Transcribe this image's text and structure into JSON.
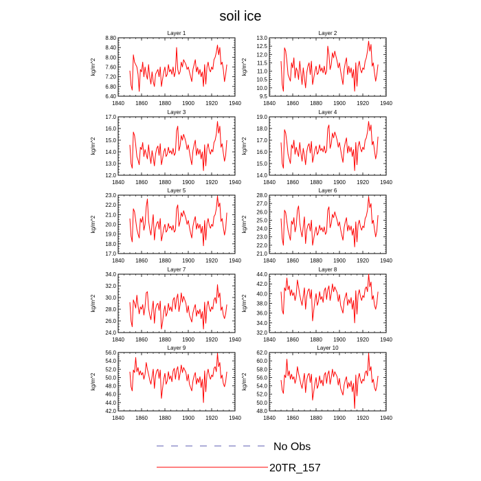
{
  "title": "soil ice",
  "legend": [
    {
      "label": "No Obs",
      "color": "#5b5bb0",
      "style": "dashed"
    },
    {
      "label": "20TR_157",
      "color": "#ff0000",
      "style": "solid"
    }
  ],
  "chart_data": [
    {
      "type": "line",
      "title": "Layer 1",
      "ylabel": "kg/m^2",
      "xlim": [
        1840,
        1940
      ],
      "ylim": [
        6.4,
        8.8
      ],
      "xticks": [
        "1840",
        "1860",
        "1880",
        "1900",
        "1920",
        "1940"
      ],
      "yticks": [
        "6.40",
        "6.80",
        "7.20",
        "7.60",
        "8.00",
        "8.40",
        "8.80"
      ],
      "start_year": 1850,
      "color": "#ff0000",
      "values": [
        7.45,
        6.85,
        6.65,
        8.1,
        7.8,
        7.7,
        7.6,
        7.3,
        6.6,
        7.5,
        7.4,
        7.8,
        7.2,
        7.6,
        7.3,
        7.1,
        7.7,
        7.2,
        6.9,
        7.4,
        7.0,
        6.8,
        7.3,
        7.4,
        7.5,
        7.2,
        7.6,
        6.8,
        7.1,
        7.4,
        7.6,
        7.2,
        7.3,
        7.7,
        7.4,
        7.5,
        7.3,
        7.6,
        7.2,
        7.4,
        8.4,
        7.5,
        7.3,
        7.4,
        7.8,
        7.6,
        7.9,
        7.8,
        7.7,
        7.5,
        7.6,
        7.4,
        7.2,
        7.0,
        7.5,
        7.7,
        7.9,
        7.4,
        7.6,
        7.3,
        7.5,
        7.2,
        7.4,
        6.8,
        7.7,
        6.9,
        7.6,
        7.8,
        7.5,
        7.4,
        7.6,
        7.5,
        7.9,
        8.0,
        8.2,
        8.5,
        8.1,
        8.4,
        7.7,
        7.8,
        7.5,
        7.0,
        7.3,
        7.7
      ]
    },
    {
      "type": "line",
      "title": "Layer 2",
      "ylabel": "kg/m^2",
      "xlim": [
        1840,
        1940
      ],
      "ylim": [
        9.5,
        13.0
      ],
      "xticks": [
        "1840",
        "1860",
        "1880",
        "1900",
        "1920",
        "1940"
      ],
      "yticks": [
        "9.5",
        "10.0",
        "10.5",
        "11.0",
        "11.5",
        "12.0",
        "12.5",
        "13.0"
      ],
      "start_year": 1850,
      "color": "#ff0000",
      "values": [
        11.6,
        10.2,
        9.8,
        12.4,
        12.2,
        11.6,
        10.8,
        10.6,
        10.4,
        11.5,
        11.2,
        11.8,
        10.6,
        11.2,
        11.0,
        10.5,
        11.6,
        10.9,
        10.2,
        11.2,
        10.6,
        10.0,
        10.9,
        11.3,
        11.5,
        10.8,
        11.6,
        10.2,
        10.6,
        11.0,
        11.3,
        10.8,
        10.9,
        11.4,
        11.0,
        11.2,
        10.9,
        11.3,
        10.8,
        11.0,
        12.5,
        12.0,
        11.1,
        11.4,
        12.1,
        11.8,
        12.2,
        11.9,
        11.6,
        11.2,
        11.5,
        11.0,
        10.6,
        10.2,
        11.1,
        11.5,
        11.8,
        10.8,
        11.3,
        10.9,
        11.2,
        10.6,
        11.1,
        9.8,
        11.5,
        10.1,
        11.3,
        11.6,
        11.1,
        10.9,
        11.2,
        11.1,
        11.6,
        11.8,
        12.2,
        12.8,
        12.2,
        12.6,
        11.3,
        11.5,
        10.9,
        10.4,
        10.8,
        11.4
      ]
    },
    {
      "type": "line",
      "title": "Layer 3",
      "ylabel": "kg/m^2",
      "xlim": [
        1840,
        1940
      ],
      "ylim": [
        12.0,
        17.0
      ],
      "xticks": [
        "1840",
        "1860",
        "1880",
        "1900",
        "1920",
        "1940"
      ],
      "yticks": [
        "12.0",
        "13.0",
        "14.0",
        "15.0",
        "16.0",
        "17.0"
      ],
      "start_year": 1850,
      "color": "#ff0000",
      "values": [
        14.6,
        13.0,
        12.6,
        15.7,
        15.4,
        14.6,
        13.6,
        13.3,
        12.9,
        14.4,
        14.2,
        14.8,
        13.6,
        14.2,
        13.8,
        13.4,
        14.6,
        13.7,
        13.0,
        14.1,
        13.5,
        12.8,
        13.8,
        14.3,
        14.5,
        13.7,
        14.7,
        12.9,
        13.4,
        14.0,
        14.3,
        13.6,
        13.8,
        14.4,
        13.9,
        14.1,
        13.8,
        14.3,
        13.7,
        13.9,
        15.8,
        16.2,
        14.1,
        14.5,
        15.4,
        15.0,
        15.5,
        15.2,
        14.8,
        14.2,
        14.6,
        14.0,
        13.4,
        12.9,
        14.1,
        14.6,
        15.0,
        13.7,
        14.3,
        13.8,
        14.2,
        13.4,
        14.0,
        12.4,
        14.6,
        12.8,
        14.3,
        14.7,
        14.1,
        13.8,
        14.2,
        14.0,
        14.8,
        15.0,
        15.5,
        16.6,
        15.6,
        16.2,
        14.4,
        14.7,
        13.9,
        13.2,
        13.7,
        15.0
      ]
    },
    {
      "type": "line",
      "title": "Layer 4",
      "ylabel": "kg/m^2",
      "xlim": [
        1840,
        1940
      ],
      "ylim": [
        14.0,
        19.0
      ],
      "xticks": [
        "1840",
        "1860",
        "1880",
        "1900",
        "1920",
        "1940"
      ],
      "yticks": [
        "14.0",
        "15.0",
        "16.0",
        "17.0",
        "18.0",
        "19.0"
      ],
      "start_year": 1850,
      "color": "#ff0000",
      "values": [
        16.8,
        15.0,
        14.6,
        17.9,
        17.6,
        16.8,
        15.8,
        15.4,
        15.0,
        16.6,
        16.3,
        17.0,
        15.8,
        16.4,
        16.0,
        15.6,
        16.8,
        15.9,
        15.2,
        16.3,
        15.7,
        14.9,
        16.0,
        16.5,
        16.7,
        15.9,
        16.9,
        15.1,
        15.6,
        16.2,
        16.5,
        15.8,
        16.0,
        16.6,
        16.1,
        16.3,
        16.0,
        16.5,
        15.9,
        16.1,
        18.0,
        18.3,
        16.3,
        16.7,
        17.6,
        17.2,
        17.7,
        17.4,
        17.0,
        16.4,
        16.8,
        16.2,
        15.6,
        15.1,
        16.3,
        16.8,
        17.2,
        15.9,
        16.5,
        16.0,
        16.4,
        15.6,
        16.2,
        14.4,
        16.8,
        14.9,
        16.5,
        16.9,
        16.3,
        16.0,
        16.4,
        16.2,
        17.0,
        17.2,
        17.7,
        18.6,
        17.8,
        18.3,
        16.6,
        16.9,
        16.1,
        15.4,
        15.9,
        17.3
      ]
    },
    {
      "type": "line",
      "title": "Layer 5",
      "ylabel": "kg/m^2",
      "xlim": [
        1840,
        1940
      ],
      "ylim": [
        17.0,
        23.0
      ],
      "xticks": [
        "1840",
        "1860",
        "1880",
        "1900",
        "1920",
        "1940"
      ],
      "yticks": [
        "17.0",
        "18.0",
        "19.0",
        "20.0",
        "21.0",
        "22.0",
        "23.0"
      ],
      "start_year": 1850,
      "color": "#ff0000",
      "values": [
        20.6,
        18.8,
        18.2,
        21.6,
        21.3,
        20.4,
        19.5,
        19.0,
        18.6,
        20.6,
        20.2,
        20.8,
        19.4,
        20.0,
        21.8,
        22.6,
        20.4,
        19.5,
        18.9,
        20.0,
        21.0,
        18.4,
        19.6,
        20.1,
        20.3,
        19.5,
        20.6,
        18.3,
        18.9,
        19.6,
        20.0,
        19.2,
        19.4,
        20.1,
        19.6,
        19.8,
        19.4,
        19.9,
        19.2,
        19.4,
        21.6,
        22.0,
        19.8,
        20.3,
        21.2,
        20.8,
        21.4,
        21.0,
        20.6,
        20.0,
        20.4,
        19.7,
        19.1,
        18.6,
        19.8,
        20.4,
        20.8,
        19.5,
        20.1,
        19.6,
        20.0,
        19.1,
        19.8,
        17.8,
        20.4,
        18.4,
        20.1,
        20.6,
        19.9,
        19.6,
        20.0,
        19.8,
        20.8,
        21.0,
        21.6,
        22.9,
        21.8,
        22.2,
        20.3,
        20.6,
        19.7,
        18.9,
        19.5,
        21.2
      ]
    },
    {
      "type": "line",
      "title": "Layer 6",
      "ylabel": "kg/m^2",
      "xlim": [
        1840,
        1940
      ],
      "ylim": [
        21.0,
        28.0
      ],
      "xticks": [
        "1840",
        "1860",
        "1880",
        "1900",
        "1920",
        "1940"
      ],
      "yticks": [
        "21.0",
        "22.0",
        "23.0",
        "24.0",
        "25.0",
        "26.0",
        "27.0",
        "28.0"
      ],
      "start_year": 1850,
      "color": "#ff0000",
      "values": [
        25.2,
        22.8,
        22.0,
        26.2,
        25.9,
        24.8,
        23.8,
        23.2,
        22.6,
        24.9,
        24.5,
        25.3,
        23.6,
        24.3,
        26.2,
        26.7,
        24.7,
        23.7,
        23.0,
        24.2,
        25.4,
        22.2,
        23.8,
        24.4,
        24.6,
        23.7,
        25.0,
        22.0,
        22.8,
        23.6,
        24.2,
        23.2,
        23.5,
        24.4,
        23.8,
        24.1,
        23.6,
        24.2,
        23.3,
        23.6,
        26.2,
        26.6,
        24.1,
        24.6,
        25.7,
        25.3,
        26.0,
        25.5,
        25.0,
        24.3,
        24.8,
        23.9,
        23.2,
        22.6,
        24.1,
        24.8,
        25.3,
        23.7,
        24.4,
        23.8,
        24.3,
        23.2,
        24.0,
        21.8,
        24.8,
        22.4,
        24.5,
        25.0,
        24.2,
        23.8,
        24.3,
        24.1,
        25.2,
        25.5,
        26.2,
        27.8,
        26.5,
        27.0,
        24.6,
        25.0,
        23.9,
        23.0,
        23.7,
        25.6
      ]
    },
    {
      "type": "line",
      "title": "Layer 7",
      "ylabel": "kg/m^2",
      "xlim": [
        1840,
        1940
      ],
      "ylim": [
        24.0,
        34.0
      ],
      "xticks": [
        "1840",
        "1860",
        "1880",
        "1900",
        "1920",
        "1940"
      ],
      "yticks": [
        "24.0",
        "26.0",
        "28.0",
        "30.0",
        "32.0",
        "34.0"
      ],
      "start_year": 1850,
      "color": "#ff0000",
      "values": [
        29.2,
        26.0,
        25.0,
        29.6,
        29.0,
        28.2,
        30.4,
        28.6,
        27.2,
        28.4,
        28.0,
        28.8,
        27.0,
        28.4,
        30.8,
        31.0,
        28.2,
        27.0,
        26.2,
        28.0,
        29.4,
        25.6,
        28.0,
        28.8,
        29.0,
        27.8,
        29.4,
        24.6,
        25.8,
        27.6,
        28.6,
        26.8,
        27.4,
        29.0,
        27.8,
        28.4,
        27.6,
        29.6,
        30.0,
        28.0,
        29.8,
        30.6,
        27.6,
        28.8,
        30.8,
        29.2,
        30.2,
        29.6,
        29.0,
        27.4,
        28.6,
        27.0,
        26.4,
        25.8,
        27.4,
        28.2,
        28.8,
        26.8,
        27.8,
        27.2,
        28.0,
        26.4,
        27.6,
        24.6,
        29.2,
        25.6,
        28.6,
        29.4,
        28.2,
        27.6,
        28.4,
        28.0,
        29.6,
        30.0,
        29.0,
        32.2,
        30.0,
        30.8,
        27.8,
        28.4,
        27.0,
        26.4,
        27.2,
        28.8
      ]
    },
    {
      "type": "line",
      "title": "Layer 8",
      "ylabel": "kg/m^2",
      "xlim": [
        1840,
        1940
      ],
      "ylim": [
        32.0,
        44.0
      ],
      "xticks": [
        "1840",
        "1860",
        "1880",
        "1900",
        "1920",
        "1940"
      ],
      "yticks": [
        "32.0",
        "34.0",
        "36.0",
        "38.0",
        "40.0",
        "42.0",
        "44.0"
      ],
      "start_year": 1850,
      "color": "#ff0000",
      "values": [
        40.4,
        36.6,
        35.8,
        41.2,
        40.6,
        43.2,
        40.8,
        41.6,
        39.6,
        40.8,
        39.6,
        40.2,
        38.6,
        39.8,
        42.8,
        41.4,
        39.8,
        38.6,
        37.6,
        39.4,
        41.2,
        36.8,
        39.4,
        40.6,
        41.0,
        39.0,
        40.8,
        34.4,
        36.6,
        38.6,
        40.0,
        37.6,
        38.4,
        40.4,
        38.8,
        39.4,
        38.2,
        40.6,
        41.2,
        38.8,
        40.8,
        41.6,
        38.6,
        40.0,
        42.0,
        40.4,
        41.4,
        40.8,
        40.2,
        38.4,
        39.8,
        37.6,
        36.8,
        36.0,
        38.4,
        39.4,
        40.2,
        37.6,
        38.8,
        38.0,
        39.2,
        36.8,
        38.6,
        34.0,
        40.6,
        35.8,
        39.8,
        40.8,
        39.4,
        38.6,
        39.6,
        39.2,
        41.0,
        41.4,
        40.4,
        44.0,
        41.4,
        42.4,
        38.8,
        39.6,
        37.6,
        36.8,
        38.0,
        40.4
      ]
    },
    {
      "type": "line",
      "title": "Layer 9",
      "ylabel": "kg/m^2",
      "xlim": [
        1840,
        1940
      ],
      "ylim": [
        42.0,
        56.0
      ],
      "xticks": [
        "1840",
        "1860",
        "1880",
        "1900",
        "1920",
        "1940"
      ],
      "yticks": [
        "42.0",
        "44.0",
        "46.0",
        "48.0",
        "50.0",
        "52.0",
        "54.0",
        "56.0"
      ],
      "start_year": 1850,
      "color": "#ff0000",
      "values": [
        51.4,
        47.8,
        46.8,
        51.8,
        51.2,
        54.8,
        51.4,
        52.4,
        50.6,
        51.6,
        50.6,
        51.2,
        49.6,
        50.8,
        53.6,
        52.0,
        50.8,
        49.4,
        48.4,
        50.2,
        52.0,
        47.4,
        50.4,
        51.6,
        52.0,
        49.8,
        51.8,
        45.0,
        47.4,
        49.6,
        51.0,
        48.4,
        49.2,
        51.4,
        49.6,
        50.4,
        49.0,
        51.6,
        52.2,
        49.6,
        51.8,
        52.6,
        49.4,
        51.0,
        53.0,
        51.2,
        52.4,
        51.8,
        51.2,
        49.2,
        50.8,
        48.4,
        47.6,
        46.8,
        49.2,
        50.4,
        51.2,
        48.4,
        49.8,
        48.8,
        50.2,
        47.6,
        49.6,
        44.0,
        51.6,
        46.6,
        50.8,
        52.0,
        50.4,
        49.6,
        50.6,
        50.2,
        52.2,
        52.6,
        51.4,
        55.8,
        52.6,
        53.6,
        49.8,
        50.6,
        48.6,
        47.8,
        49.0,
        51.4
      ]
    },
    {
      "type": "line",
      "title": "Layer 10",
      "ylabel": "kg/m^2",
      "xlim": [
        1840,
        1940
      ],
      "ylim": [
        48.0,
        62.0
      ],
      "xticks": [
        "1840",
        "1860",
        "1880",
        "1900",
        "1920",
        "1940"
      ],
      "yticks": [
        "48.0",
        "50.0",
        "52.0",
        "54.0",
        "56.0",
        "58.0",
        "60.0",
        "62.0"
      ],
      "start_year": 1850,
      "color": "#ff0000",
      "values": [
        55.4,
        53.0,
        52.2,
        56.6,
        56.0,
        60.4,
        56.4,
        57.6,
        55.6,
        56.8,
        55.6,
        56.2,
        54.6,
        55.8,
        58.6,
        57.0,
        55.8,
        54.4,
        53.4,
        55.2,
        57.0,
        52.4,
        55.4,
        56.6,
        57.0,
        54.8,
        56.8,
        50.6,
        52.6,
        54.6,
        56.0,
        53.4,
        54.2,
        56.4,
        54.6,
        55.4,
        54.0,
        56.6,
        57.2,
        54.6,
        56.8,
        57.6,
        54.4,
        56.0,
        58.0,
        56.2,
        57.4,
        56.8,
        56.2,
        54.2,
        55.8,
        53.4,
        52.6,
        51.8,
        54.2,
        55.4,
        56.2,
        53.4,
        54.8,
        53.8,
        55.2,
        52.6,
        54.6,
        48.6,
        56.6,
        51.6,
        55.8,
        57.0,
        55.4,
        54.6,
        55.6,
        55.2,
        57.2,
        57.6,
        56.4,
        61.8,
        57.6,
        58.6,
        54.8,
        55.6,
        53.6,
        52.8,
        54.0,
        56.4
      ]
    }
  ]
}
